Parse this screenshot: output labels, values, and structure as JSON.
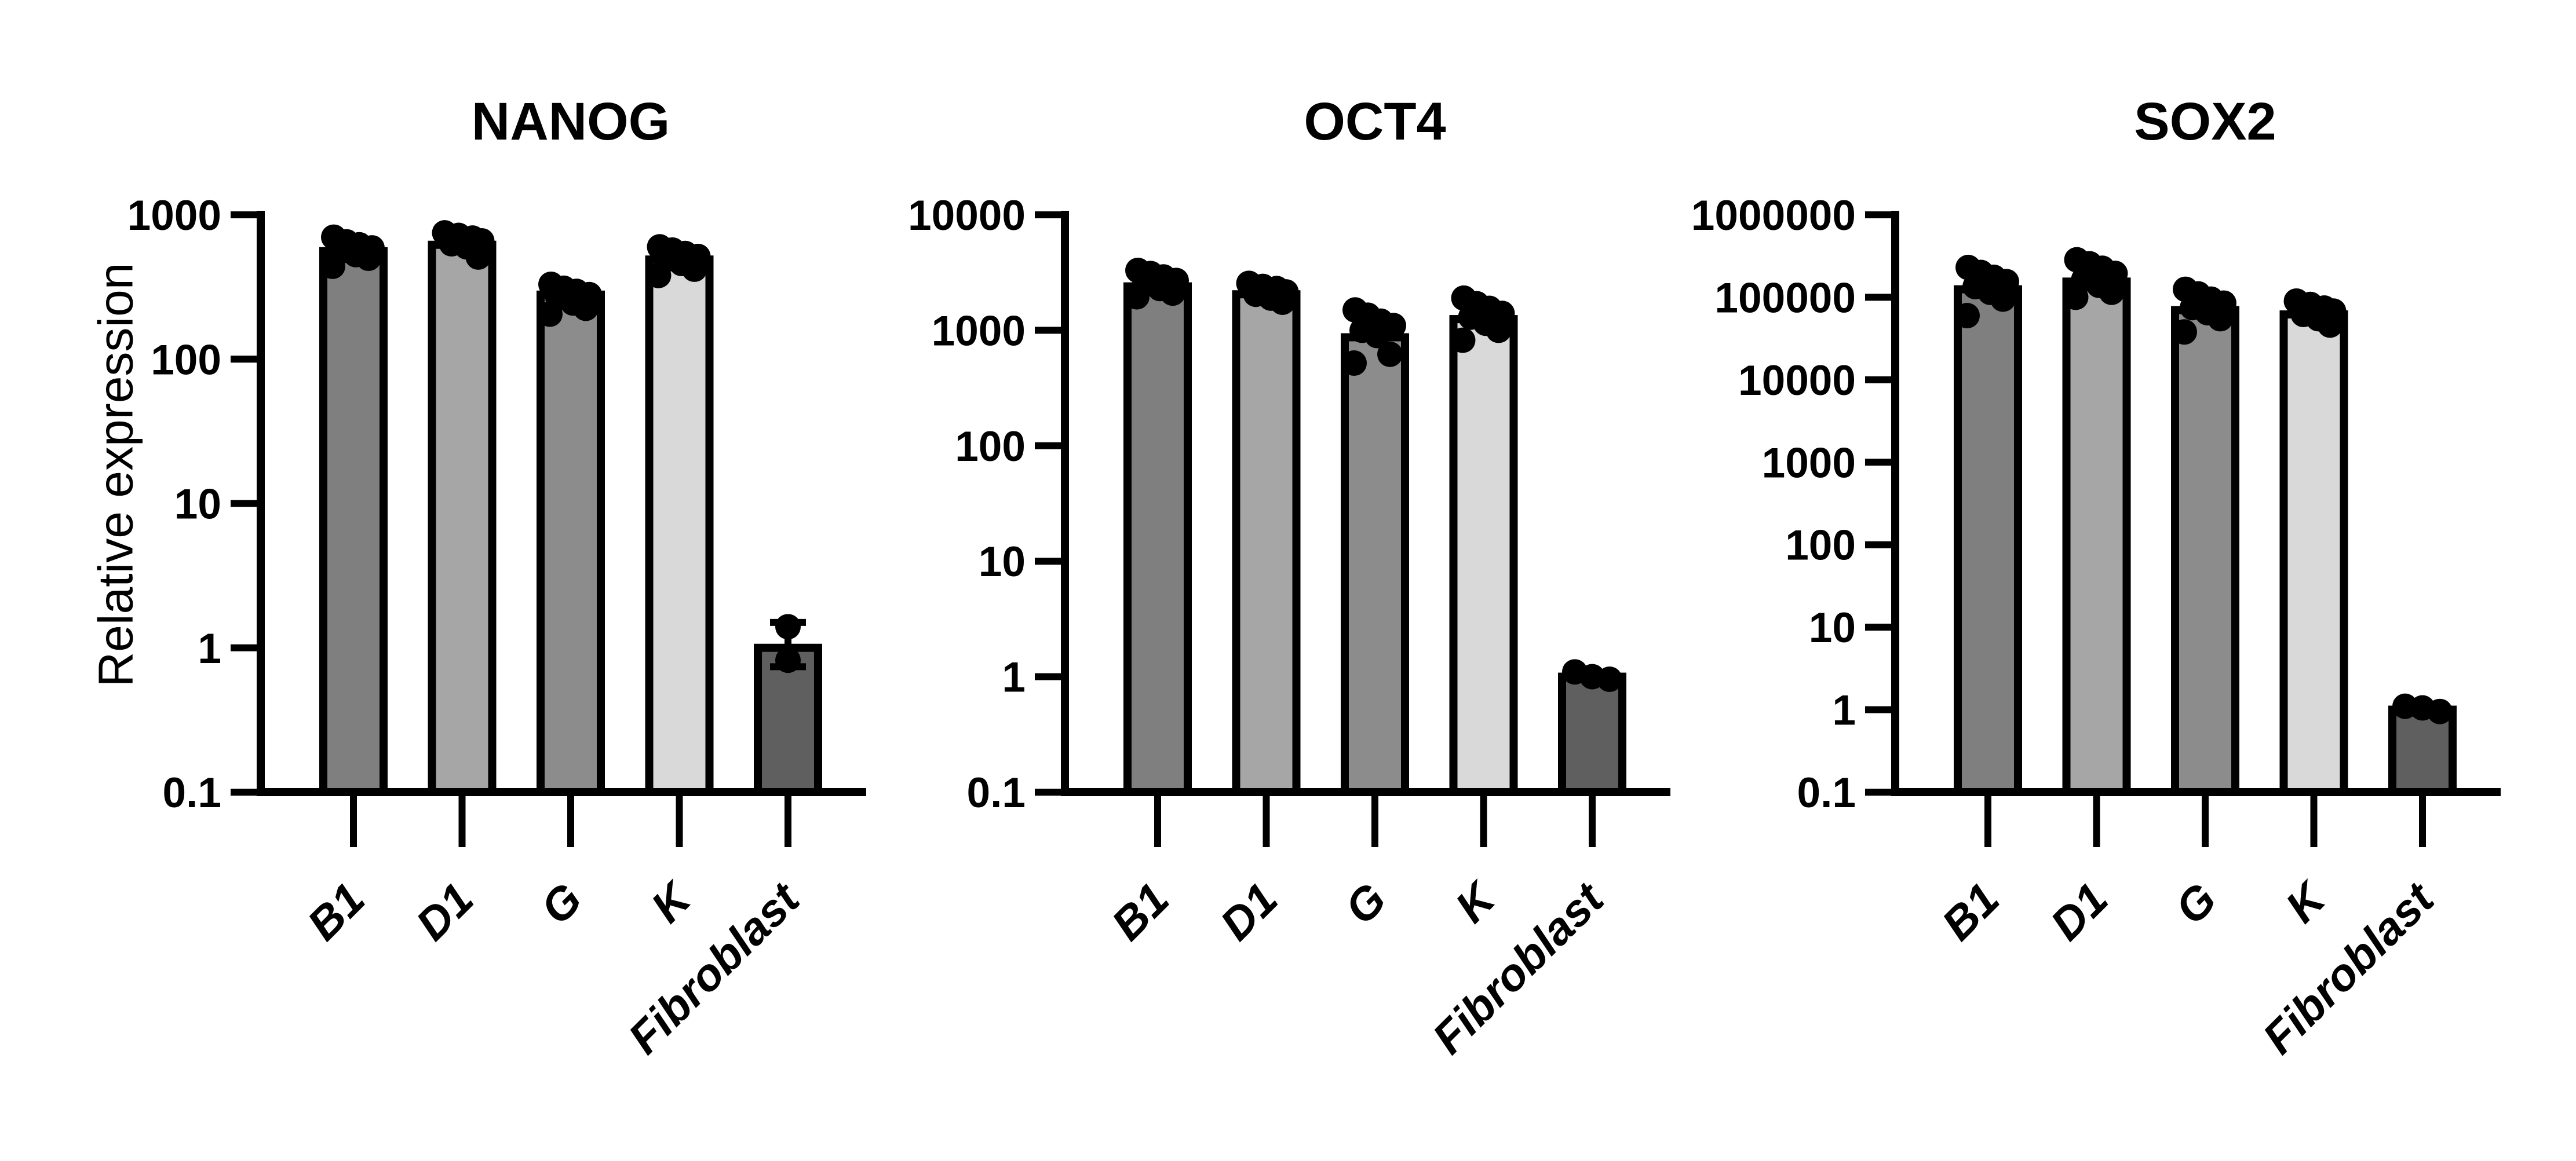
{
  "figure": {
    "ylabel": "Relative expression",
    "background": "#ffffff",
    "point_color": "#000000",
    "axis_color": "#000000"
  },
  "chart_data": [
    {
      "type": "bar",
      "title": "NANOG",
      "yscale": "log",
      "grid": false,
      "legend": false,
      "ylim": [
        0.1,
        1000
      ],
      "ytick_labels": [
        "1000",
        "100",
        "10",
        "1",
        "0.1"
      ],
      "categories": [
        "B1",
        "D1",
        "G",
        "K",
        "Fibroblast"
      ],
      "values": [
        560,
        620,
        280,
        490,
        1.0
      ],
      "bar_colors": [
        "#7f7f7f",
        "#a6a6a6",
        "#8c8c8c",
        "#d9d9d9",
        "#5f5f5f"
      ],
      "points": [
        [
          700,
          650,
          620,
          590,
          560,
          530,
          500,
          440
        ],
        [
          750,
          720,
          690,
          660,
          630,
          600,
          510
        ],
        [
          330,
          310,
          295,
          280,
          265,
          245,
          225,
          205
        ],
        [
          600,
          570,
          540,
          515,
          490,
          460,
          420,
          380
        ],
        [
          1.4,
          0.82
        ]
      ],
      "error_bars": [
        null,
        null,
        null,
        null,
        {
          "low": 0.74,
          "high": 1.5
        }
      ]
    },
    {
      "type": "bar",
      "title": "OCT4",
      "yscale": "log",
      "grid": false,
      "legend": false,
      "ylim": [
        0.1,
        10000
      ],
      "ytick_labels": [
        "10000",
        "1000",
        "100",
        "10",
        "1",
        "0.1"
      ],
      "categories": [
        "B1",
        "D1",
        "G",
        "K",
        "Fibroblast"
      ],
      "values": [
        2400,
        2050,
        870,
        1250,
        1.0
      ],
      "bar_colors": [
        "#7f7f7f",
        "#a6a6a6",
        "#8c8c8c",
        "#d9d9d9",
        "#5f5f5f"
      ],
      "points": [
        [
          3300,
          3100,
          2900,
          2700,
          2500,
          2300,
          2100,
          1950
        ],
        [
          2550,
          2400,
          2300,
          2150,
          2050,
          1900,
          1750
        ],
        [
          1500,
          1350,
          1200,
          1100,
          1000,
          900,
          620,
          520
        ],
        [
          1900,
          1700,
          1550,
          1400,
          1300,
          1150,
          1000,
          820
        ],
        [
          1.1,
          1.0,
          0.95
        ]
      ],
      "error_bars": [
        null,
        null,
        null,
        null,
        null
      ]
    },
    {
      "type": "bar",
      "title": "SOX2",
      "yscale": "log",
      "grid": false,
      "legend": false,
      "ylim": [
        0.1,
        1000000
      ],
      "ytick_labels": [
        "1000000",
        "100000",
        "10000",
        "1000",
        "100",
        "10",
        "1",
        "0.1"
      ],
      "categories": [
        "B1",
        "D1",
        "G",
        "K",
        "Fibroblast"
      ],
      "values": [
        125000,
        155000,
        70000,
        62000,
        1.0
      ],
      "bar_colors": [
        "#7f7f7f",
        "#a6a6a6",
        "#8c8c8c",
        "#d9d9d9",
        "#5f5f5f"
      ],
      "points": [
        [
          230000,
          200000,
          175000,
          155000,
          135000,
          115000,
          95000,
          60000
        ],
        [
          285000,
          255000,
          225000,
          195000,
          165000,
          140000,
          115000,
          100000
        ],
        [
          125000,
          110000,
          95000,
          85000,
          75000,
          65000,
          55000,
          38000
        ],
        [
          90000,
          82000,
          74000,
          68000,
          62000,
          55000,
          46000
        ],
        [
          1.1,
          1.05,
          0.95
        ]
      ],
      "error_bars": [
        null,
        null,
        null,
        null,
        null
      ]
    }
  ]
}
